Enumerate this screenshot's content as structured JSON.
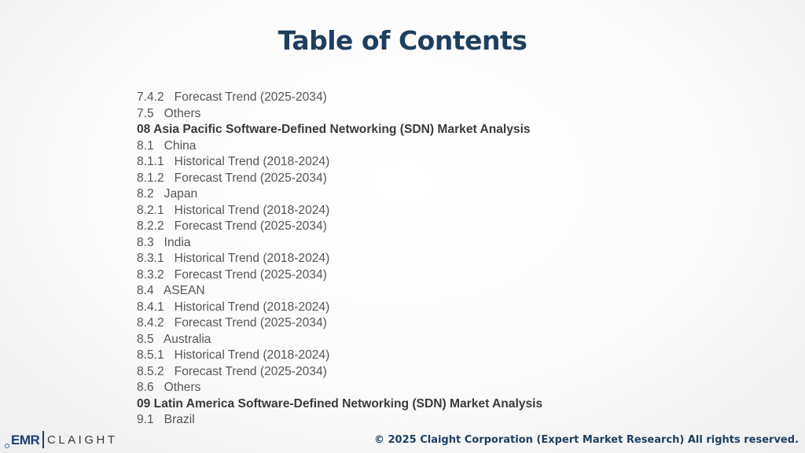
{
  "slide": {
    "title": "Table of Contents",
    "toc_items": [
      {
        "text": "7.4.2   Forecast Trend (2025-2034)",
        "heading": false
      },
      {
        "text": "7.5   Others",
        "heading": false
      },
      {
        "text": "08 Asia Pacific Software-Defined Networking (SDN) Market Analysis",
        "heading": true
      },
      {
        "text": "8.1   China",
        "heading": false
      },
      {
        "text": "8.1.1   Historical Trend (2018-2024)",
        "heading": false
      },
      {
        "text": "8.1.2   Forecast Trend (2025-2034)",
        "heading": false
      },
      {
        "text": "8.2   Japan",
        "heading": false
      },
      {
        "text": "8.2.1   Historical Trend (2018-2024)",
        "heading": false
      },
      {
        "text": "8.2.2   Forecast Trend (2025-2034)",
        "heading": false
      },
      {
        "text": "8.3   India",
        "heading": false
      },
      {
        "text": "8.3.1   Historical Trend (2018-2024)",
        "heading": false
      },
      {
        "text": "8.3.2   Forecast Trend (2025-2034)",
        "heading": false
      },
      {
        "text": "8.4   ASEAN",
        "heading": false
      },
      {
        "text": "8.4.1   Historical Trend (2018-2024)",
        "heading": false
      },
      {
        "text": "8.4.2   Forecast Trend (2025-2034)",
        "heading": false
      },
      {
        "text": "8.5   Australia",
        "heading": false
      },
      {
        "text": "8.5.1   Historical Trend (2018-2024)",
        "heading": false
      },
      {
        "text": "8.5.2   Forecast Trend (2025-2034)",
        "heading": false
      },
      {
        "text": "8.6   Others",
        "heading": false
      },
      {
        "text": "09 Latin America Software-Defined Networking (SDN) Market Analysis",
        "heading": true
      },
      {
        "text": "9.1   Brazil",
        "heading": false
      }
    ],
    "logo": {
      "emr": "EMR",
      "claight": "CLAIGHT"
    },
    "footer": "© 2025 Claight Corporation (Expert Market Research) All rights reserved."
  }
}
